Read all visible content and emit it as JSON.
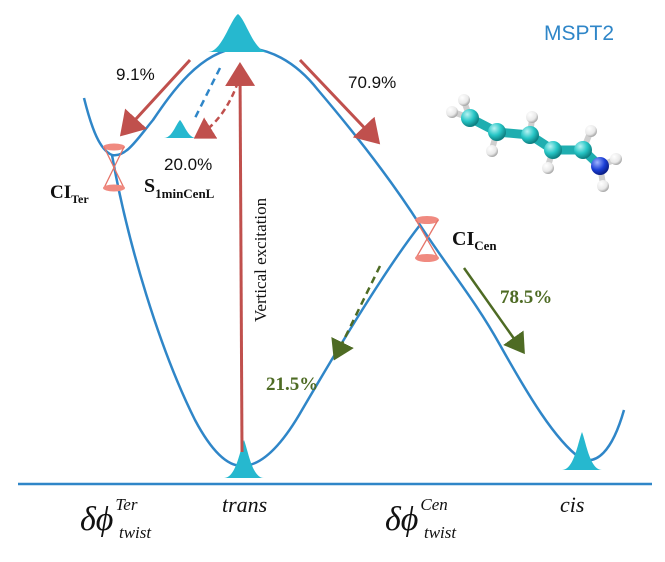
{
  "title": "MSPT2",
  "colors": {
    "curve": "#2f86c8",
    "red_arrow": "#c0504d",
    "green_arrow": "#4e6b24",
    "peak": "#26b8cf",
    "ci_marker": "#f08a80",
    "text": "#111111",
    "title": "#2f86c8"
  },
  "labels": {
    "pct_91": "9.1%",
    "pct_709": "70.9%",
    "pct_200": "20.0%",
    "pct_785": "78.5%",
    "pct_215": "21.5%",
    "ci_ter_main": "CI",
    "ci_ter_sub": "Ter",
    "ci_cen_main": "CI",
    "ci_cen_sub": "Cen",
    "s1_main": "S",
    "s1_sub": "1minCenL",
    "vertical_excitation": "Vertical excitation",
    "trans": "trans",
    "cis": "cis",
    "delta_phi_ter_base": "δϕ",
    "delta_phi_ter_sup": "Ter",
    "delta_phi_ter_sub": "twist",
    "delta_phi_cen_base": "δϕ",
    "delta_phi_cen_sup": "Cen",
    "delta_phi_cen_sub": "twist"
  },
  "molecule": {
    "name": "molecule-model"
  }
}
